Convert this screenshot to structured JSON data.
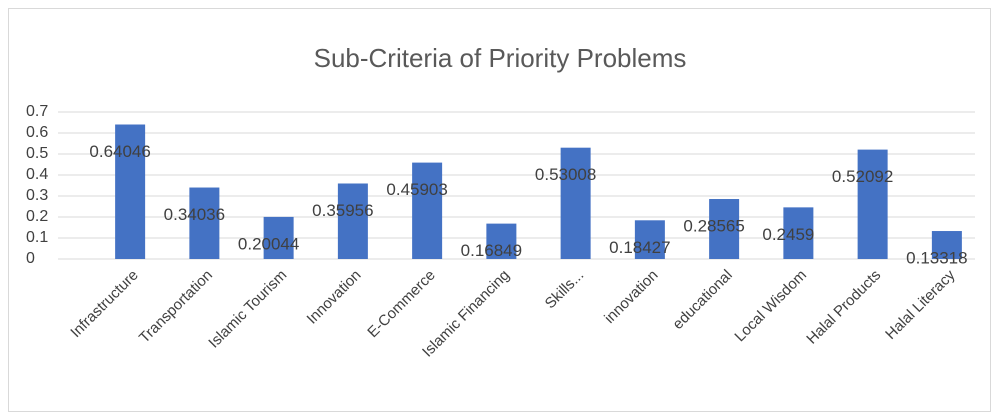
{
  "chart_data": {
    "type": "bar",
    "title": "Sub-Criteria of Priority Problems",
    "categories": [
      "Infrastructure",
      "Transportation",
      "Islamic Tourism",
      "Innovation",
      "E-Commerce",
      "Islamic Financing",
      "Skills...",
      "innovation",
      "educational",
      "Local Wisdom",
      "Halal Products",
      "Halal Literacy"
    ],
    "values": [
      0.64046,
      0.34036,
      0.20044,
      0.35956,
      0.45903,
      0.16849,
      0.53008,
      0.18427,
      0.28565,
      0.2459,
      0.52092,
      0.13318
    ],
    "color": "#4472c4",
    "ylim": [
      0,
      0.7
    ],
    "yticks": [
      0,
      0.1,
      0.2,
      0.3,
      0.4,
      0.5,
      0.6,
      0.7
    ],
    "grid": true
  }
}
